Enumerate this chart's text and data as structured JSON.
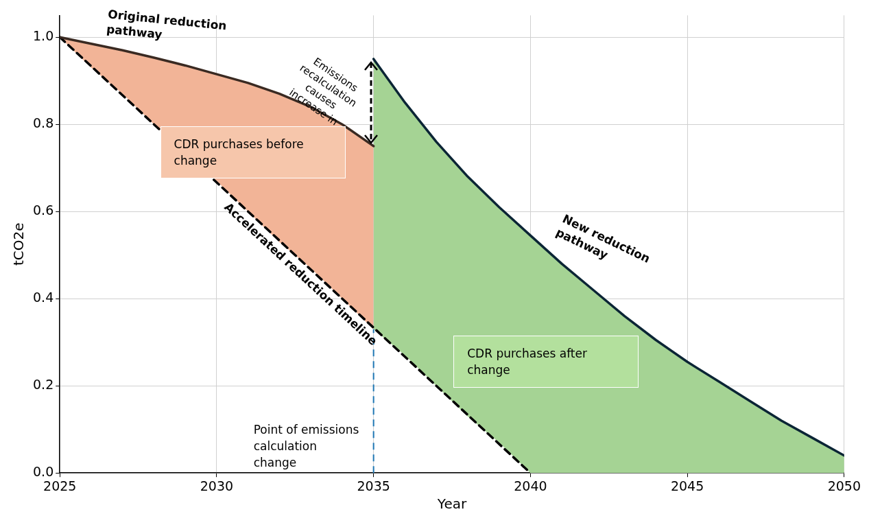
{
  "chart_data": {
    "type": "line",
    "xlabel": "Year",
    "ylabel": "tCO2e",
    "xlim": [
      2025,
      2050
    ],
    "xticks": [
      2025,
      2030,
      2035,
      2040,
      2045,
      2050
    ],
    "ylim": [
      0,
      1.05
    ],
    "yticks": [
      {
        "value": 0,
        "label": "0.0"
      },
      0.2,
      0.4,
      0.6,
      0.8,
      {
        "value": 1,
        "label": "1.0"
      }
    ],
    "grid": true,
    "legend": false,
    "series": [
      {
        "name": "Original reduction pathway",
        "color": "#3a2a22",
        "line_style": "solid",
        "x": [
          2025,
          2026,
          2027,
          2028,
          2029,
          2030,
          2031,
          2032,
          2033,
          2034,
          2035
        ],
        "values": [
          1.0,
          0.985,
          0.97,
          0.953,
          0.935,
          0.915,
          0.895,
          0.87,
          0.84,
          0.8,
          0.75
        ],
        "lower": [
          1.0,
          0.93,
          0.87,
          0.8,
          null,
          0.67,
          0.6,
          0.53,
          0.47,
          0.4,
          0.33
        ],
        "upper": [
          1.0,
          0.985,
          0.97,
          0.953,
          null,
          0.915,
          0.895,
          0.87,
          0.84,
          0.8,
          0.75
        ]
      },
      {
        "name": "Accelerated reduction timeline",
        "color": "#000000",
        "line_style": "dashed",
        "x": [
          2025,
          2040
        ],
        "values": [
          1.0,
          0
        ]
      },
      {
        "name": "New reduction pathway",
        "color": "#0b2535",
        "line_style": "solid",
        "x": [
          2035,
          2036,
          2037,
          2038,
          2039,
          2040,
          2041,
          2042,
          2043,
          2044,
          2045,
          2046,
          2047,
          2048,
          2049,
          2050
        ],
        "values": [
          0.95,
          0.85,
          0.76,
          0.68,
          0.61,
          0.545,
          0.48,
          0.42,
          0.36,
          0.305,
          0.255,
          0.21,
          0.165,
          0.12,
          0.08,
          0.04
        ],
        "lower": [
          0.33,
          0.27,
          0.2,
          0.13,
          0.07,
          0,
          0,
          0,
          0,
          0,
          0,
          0,
          0,
          0,
          0,
          0
        ],
        "upper": [
          0.95,
          0.85,
          0.76,
          0.68,
          0.61,
          0.545,
          0.48,
          0.42,
          0.36,
          0.305,
          0.255,
          0.21,
          0.165,
          0.12,
          0.08,
          0.04
        ]
      }
    ],
    "annotations": [
      {
        "text": "Emissions recalculation causes increase in",
        "x": 2035,
        "y": 0.85
      },
      "CDR purchases before change",
      "CDR purchases after change"
    ],
    "ref_lines": [
      {
        "axis": "x",
        "value": 2035,
        "label": "Point of emissions calculation change",
        "color": "#1f77b4",
        "line_style": "dashed"
      }
    ]
  }
}
